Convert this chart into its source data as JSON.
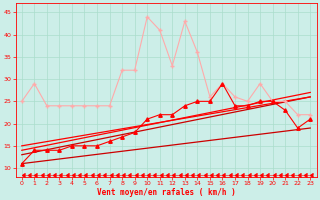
{
  "bg_color": "#cceee8",
  "grid_color": "#aadddd",
  "xlabel": "Vent moyen/en rafales ( km/h )",
  "xlabel_color": "#ff0000",
  "tick_color": "#ff0000",
  "xlim": [
    -0.5,
    23.5
  ],
  "ylim": [
    8,
    47
  ],
  "yticks": [
    10,
    15,
    20,
    25,
    30,
    35,
    40,
    45
  ],
  "xticks": [
    0,
    1,
    2,
    3,
    4,
    5,
    6,
    7,
    8,
    9,
    10,
    11,
    12,
    13,
    14,
    15,
    16,
    17,
    18,
    19,
    20,
    21,
    22,
    23
  ],
  "line_gust": {
    "x": [
      0,
      1,
      2,
      3,
      4,
      5,
      6,
      7,
      8,
      9,
      10,
      11,
      12,
      13,
      14,
      15,
      16,
      17,
      18,
      19,
      20,
      21,
      22,
      23
    ],
    "y": [
      25,
      29,
      24,
      24,
      24,
      24,
      24,
      24,
      32,
      32,
      44,
      41,
      33,
      43,
      36,
      26,
      29,
      26,
      25,
      29,
      25,
      25,
      22,
      22
    ],
    "color": "#ffaaaa",
    "marker": "+",
    "lw": 0.8,
    "ms": 3
  },
  "line_wind_avg": {
    "x": [
      0,
      1,
      2,
      3,
      4,
      5,
      6,
      7,
      8,
      9,
      10,
      11,
      12,
      13,
      14,
      15,
      16,
      17,
      18,
      19,
      20,
      21,
      22,
      23
    ],
    "y": [
      11,
      14,
      14,
      14,
      15,
      15,
      15,
      16,
      17,
      18,
      21,
      22,
      22,
      24,
      25,
      25,
      29,
      24,
      24,
      25,
      25,
      23,
      19,
      21
    ],
    "color": "#ff0000",
    "marker": "^",
    "lw": 0.8,
    "ms": 2.5
  },
  "line_straight1": {
    "x": [
      0,
      23
    ],
    "y": [
      11,
      19
    ],
    "color": "#cc0000",
    "lw": 0.9
  },
  "line_straight2": {
    "x": [
      0,
      23
    ],
    "y": [
      13,
      26
    ],
    "color": "#cc0000",
    "lw": 0.9
  },
  "line_straight3": {
    "x": [
      0,
      23
    ],
    "y": [
      14,
      27
    ],
    "color": "#ff0000",
    "lw": 0.9
  },
  "line_straight4": {
    "x": [
      0,
      23
    ],
    "y": [
      15,
      26
    ],
    "color": "#ff0000",
    "lw": 0.9
  },
  "line_bottom": {
    "x": [
      0,
      0.5,
      1,
      1.5,
      2,
      2.5,
      3,
      3.5,
      4,
      4.5,
      5,
      5.5,
      6,
      6.5,
      7,
      7.5,
      8,
      8.5,
      9,
      9.5,
      10,
      10.5,
      11,
      11.5,
      12,
      12.5,
      13,
      13.5,
      14,
      14.5,
      15,
      15.5,
      16,
      16.5,
      17,
      17.5,
      18,
      18.5,
      19,
      19.5,
      20,
      20.5,
      21,
      21.5,
      22,
      22.5,
      23
    ],
    "y": [
      8.5,
      8.5,
      8.5,
      8.5,
      8.5,
      8.5,
      8.5,
      8.5,
      8.5,
      8.5,
      8.5,
      8.5,
      8.5,
      8.5,
      8.5,
      8.5,
      8.5,
      8.5,
      8.5,
      8.5,
      8.5,
      8.5,
      8.5,
      8.5,
      8.5,
      8.5,
      8.5,
      8.5,
      8.5,
      8.5,
      8.5,
      8.5,
      8.5,
      8.5,
      8.5,
      8.5,
      8.5,
      8.5,
      8.5,
      8.5,
      8.5,
      8.5,
      8.5,
      8.5,
      8.5,
      8.5,
      8.5
    ],
    "color": "#ff0000",
    "marker": 4,
    "lw": 0.4,
    "ms": 3
  },
  "figsize": [
    3.2,
    2.0
  ],
  "dpi": 100
}
